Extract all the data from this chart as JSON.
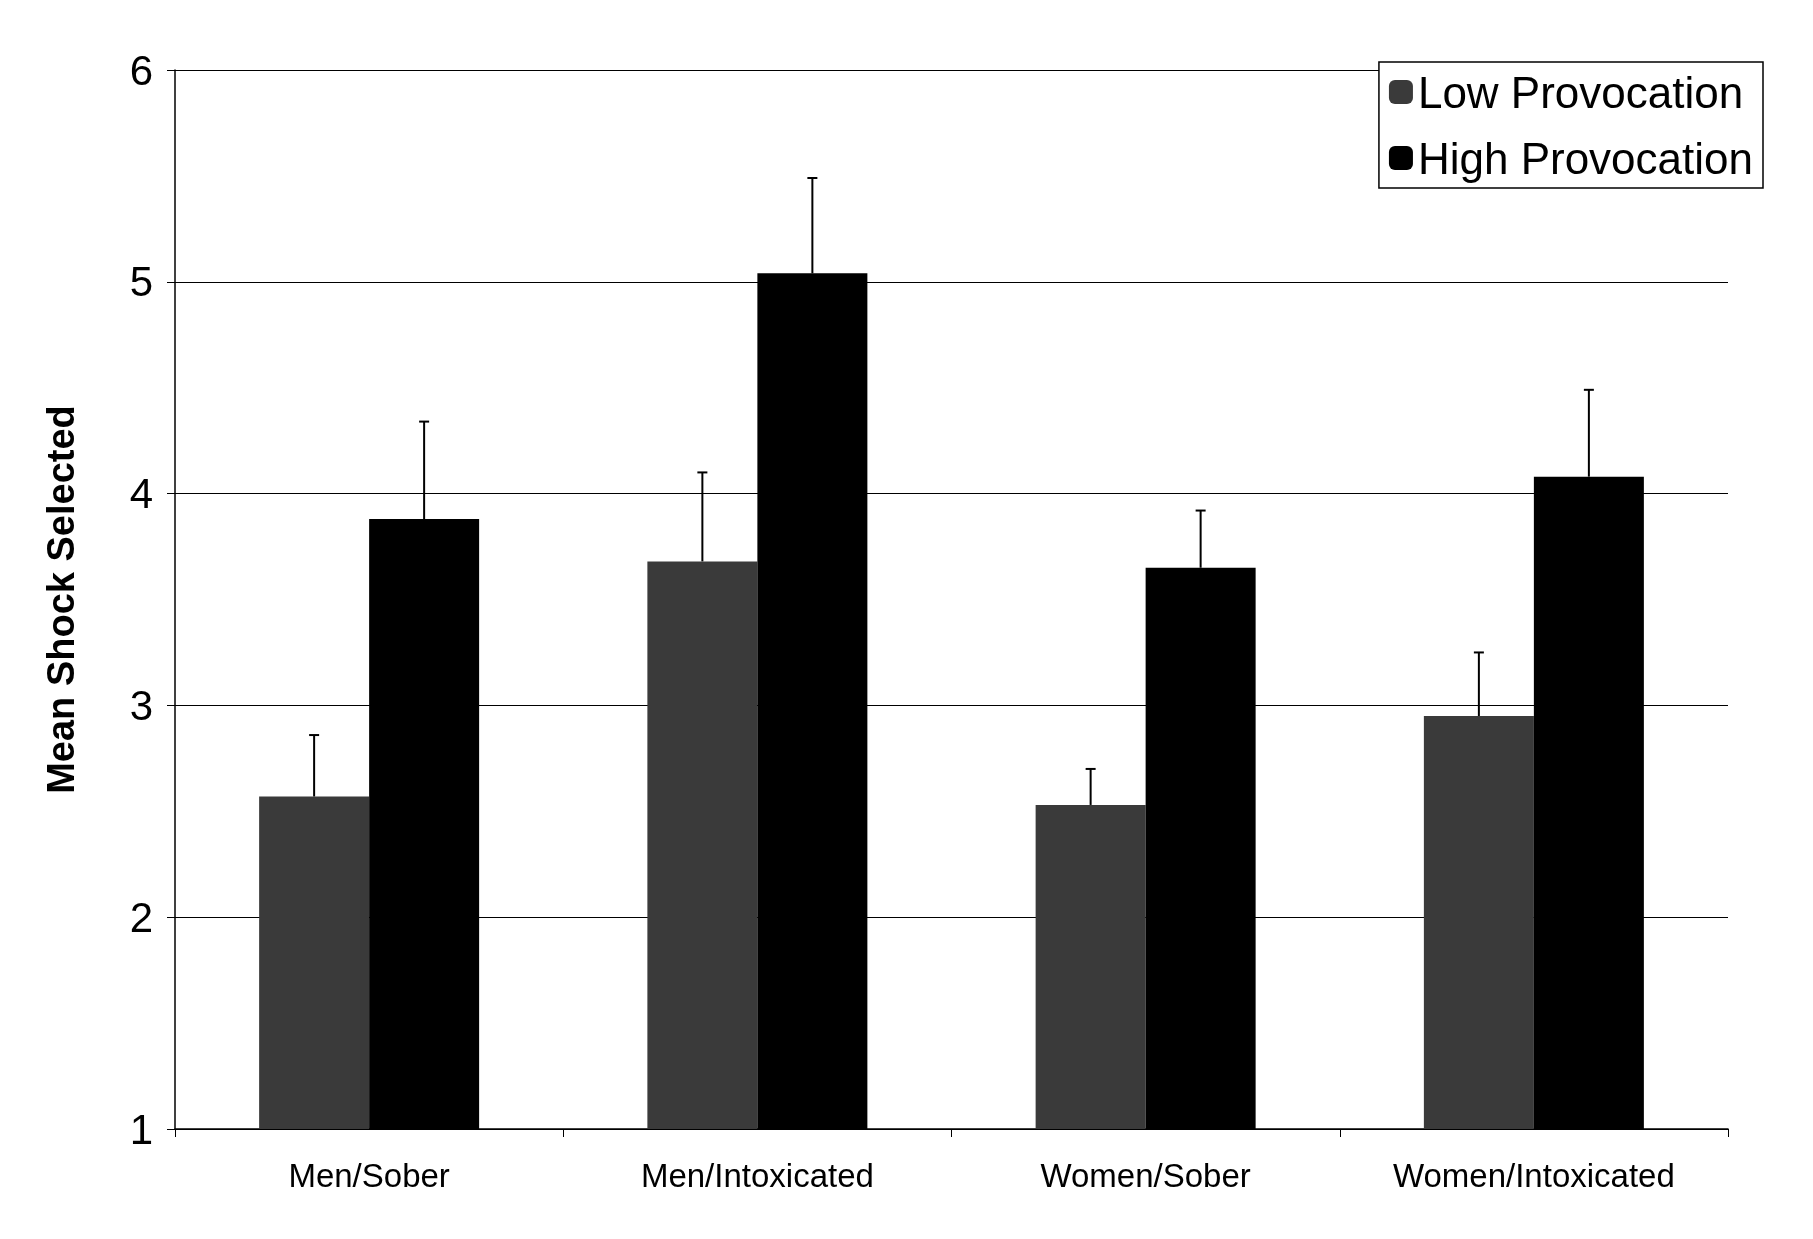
{
  "chart_data": {
    "type": "bar",
    "ylabel": "Mean Shock Selected",
    "categories": [
      "Men/Sober",
      "Men/Intoxicated",
      "Women/Sober",
      "Women/Intoxicated"
    ],
    "series": [
      {
        "name": "Low Provocation",
        "color": "#3a3a3a",
        "values": [
          2.57,
          3.68,
          2.53,
          2.95
        ],
        "errors": [
          [
            2.57,
            2.86
          ],
          [
            3.68,
            4.1
          ],
          [
            2.53,
            2.7
          ],
          [
            2.95,
            3.25
          ]
        ]
      },
      {
        "name": "High Provocation",
        "color": "#000000",
        "values": [
          3.88,
          5.04,
          3.65,
          4.08
        ],
        "errors": [
          [
            3.88,
            4.34
          ],
          [
            5.04,
            5.49
          ],
          [
            3.65,
            3.92
          ],
          [
            4.08,
            4.49
          ]
        ]
      }
    ],
    "ylim": [
      1,
      6
    ],
    "yticks": [
      1,
      2,
      3,
      4,
      5,
      6
    ],
    "grid": "y",
    "legend": "top right"
  }
}
